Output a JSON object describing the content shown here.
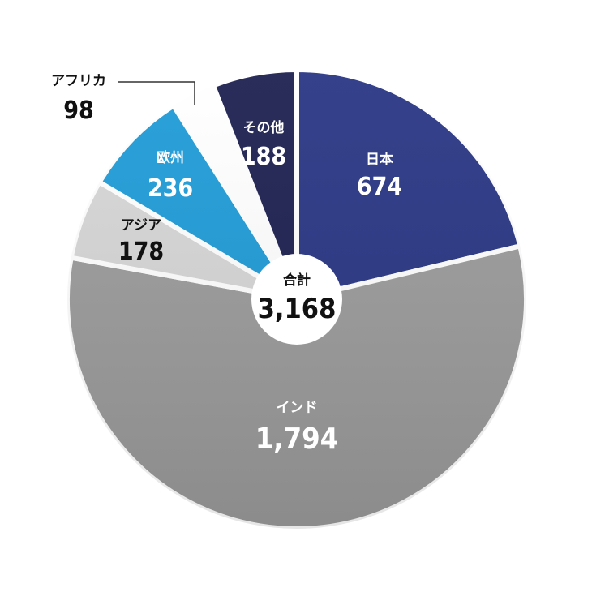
{
  "chart_data": {
    "type": "pie",
    "slices": [
      {
        "label": "日本",
        "value": 674,
        "display": "674",
        "color": "#283583",
        "text_color": "#ffffff"
      },
      {
        "label": "インド",
        "value": 1794,
        "display": "1,794",
        "color": "#9b9b9b",
        "text_color": "#ffffff"
      },
      {
        "label": "アジア",
        "value": 178,
        "display": "178",
        "color": "#d6d6d6",
        "text_color": "#111111"
      },
      {
        "label": "欧州",
        "value": 236,
        "display": "236",
        "color": "#1e9bd7",
        "text_color": "#ffffff"
      },
      {
        "label": "アフリカ",
        "value": 98,
        "display": "98",
        "color": "#ffffff",
        "text_color": "#111111"
      },
      {
        "label": "その他",
        "value": 188,
        "display": "188",
        "color": "#1c1f4f",
        "text_color": "#ffffff"
      }
    ],
    "total": {
      "label": "合計",
      "value": 3168,
      "display": "3,168"
    },
    "start_angle_deg": 0,
    "direction": "clockwise"
  }
}
